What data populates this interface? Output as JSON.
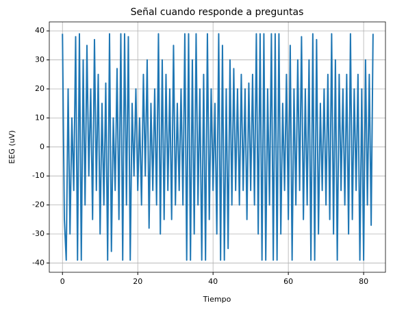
{
  "chart_data": {
    "type": "line",
    "title": "Señal cuando responde a preguntas",
    "xlabel": "Tiempo",
    "ylabel": "EEG (uV)",
    "x": [
      0,
      0.5,
      1,
      1.5,
      2,
      2.5,
      3,
      3.5,
      4,
      4.5,
      5,
      5.5,
      6,
      6.5,
      7,
      7.5,
      8,
      8.5,
      9,
      9.5,
      10,
      10.5,
      11,
      11.5,
      12,
      12.5,
      13,
      13.5,
      14,
      14.5,
      15,
      15.5,
      16,
      16.5,
      17,
      17.5,
      18,
      18.5,
      19,
      19.5,
      20,
      20.5,
      21,
      21.5,
      22,
      22.5,
      23,
      23.5,
      24,
      24.5,
      25,
      25.5,
      26,
      26.5,
      27,
      27.5,
      28,
      28.5,
      29,
      29.5,
      30,
      30.5,
      31,
      31.5,
      32,
      32.5,
      33,
      33.5,
      34,
      34.5,
      35,
      35.5,
      36,
      36.5,
      37,
      37.5,
      38,
      38.5,
      39,
      39.5,
      40,
      40.5,
      41,
      41.5,
      42,
      42.5,
      43,
      43.5,
      44,
      44.5,
      45,
      45.5,
      46,
      46.5,
      47,
      47.5,
      48,
      48.5,
      49,
      49.5,
      50,
      50.5,
      51,
      51.5,
      52,
      52.5,
      53,
      53.5,
      54,
      54.5,
      55,
      55.5,
      56,
      56.5,
      57,
      57.5,
      58,
      58.5,
      59,
      59.5,
      60,
      60.5,
      61,
      61.5,
      62,
      62.5,
      63,
      63.5,
      64,
      64.5,
      65,
      65.5,
      66,
      66.5,
      67,
      67.5,
      68,
      68.5,
      69,
      69.5,
      70,
      70.5,
      71,
      71.5,
      72,
      72.5,
      73,
      73.5,
      74,
      74.5,
      75,
      75.5,
      76,
      76.5,
      77,
      77.5,
      78,
      78.5,
      79,
      79.5,
      80,
      80.5,
      81,
      81.5,
      82,
      82.5
    ],
    "series": [
      {
        "name": "EEG",
        "color": "#1f77b4",
        "values": [
          39,
          -25,
          -39,
          20,
          -30,
          10,
          -15,
          38,
          -39,
          39,
          -39,
          30,
          -20,
          35,
          -10,
          20,
          -25,
          37,
          -15,
          25,
          -30,
          15,
          -20,
          22,
          -39,
          39,
          -36,
          10,
          -15,
          27,
          -25,
          39,
          -39,
          39,
          -20,
          38,
          -39,
          15,
          -10,
          20,
          -15,
          10,
          -20,
          25,
          -10,
          30,
          -28,
          15,
          -15,
          20,
          -20,
          39,
          -30,
          30,
          -25,
          25,
          -15,
          20,
          -25,
          35,
          -20,
          15,
          -15,
          20,
          -20,
          39,
          -39,
          39,
          -39,
          30,
          -30,
          39,
          -20,
          20,
          -39,
          25,
          -39,
          39,
          -25,
          20,
          -15,
          15,
          -30,
          39,
          -39,
          35,
          -39,
          20,
          -35,
          30,
          -20,
          27,
          -15,
          20,
          -20,
          25,
          -15,
          20,
          -25,
          22,
          -15,
          25,
          -20,
          39,
          -30,
          39,
          -39,
          39,
          -39,
          20,
          -20,
          39,
          -39,
          39,
          -39,
          39,
          -30,
          15,
          -15,
          25,
          -25,
          35,
          -39,
          20,
          -20,
          30,
          -15,
          38,
          -25,
          20,
          -20,
          30,
          -39,
          39,
          -39,
          37,
          -30,
          15,
          -15,
          20,
          -20,
          25,
          -25,
          39,
          -30,
          30,
          -39,
          25,
          -15,
          20,
          -20,
          25,
          -30,
          39,
          -25,
          20,
          -15,
          25,
          -39,
          20,
          -39,
          30,
          -20,
          25,
          -27,
          39
        ]
      }
    ],
    "xlim": [
      -3.5,
      85.8
    ],
    "ylim": [
      -43.2,
      43.1
    ],
    "xticks": [
      0,
      20,
      40,
      60,
      80
    ],
    "yticks": [
      -40,
      -30,
      -20,
      -10,
      0,
      10,
      20,
      30,
      40
    ],
    "grid": true
  }
}
